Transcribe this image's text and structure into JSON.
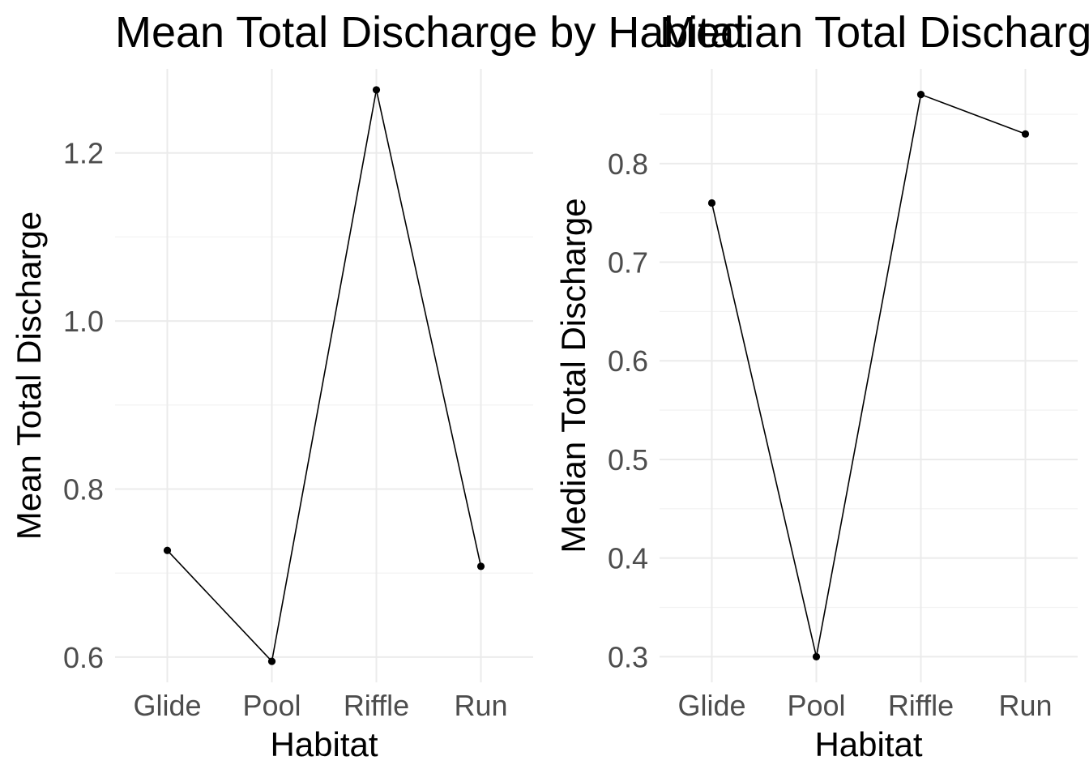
{
  "chart_data": [
    {
      "type": "line",
      "title": "Mean Total Discharge by Habitat",
      "xlabel": "Habitat",
      "ylabel": "Mean Total Discharge",
      "categories": [
        "Glide",
        "Pool",
        "Riffle",
        "Run"
      ],
      "series": [
        {
          "values": [
            0.727,
            0.595,
            1.275,
            0.708
          ]
        }
      ],
      "ylim": [
        0.57,
        1.3
      ],
      "yticks": [
        0.6,
        0.8,
        1.0,
        1.2
      ],
      "ytick_labels": [
        "0.6",
        "0.8",
        "1.0",
        "1.2"
      ],
      "yminor": [
        0.7,
        0.9,
        1.1
      ],
      "grid": true,
      "legend": "none"
    },
    {
      "type": "line",
      "title": "Median Total Discharge by Habitat",
      "xlabel": "Habitat",
      "ylabel": "Median Total Discharge",
      "categories": [
        "Glide",
        "Pool",
        "Riffle",
        "Run"
      ],
      "series": [
        {
          "values": [
            0.76,
            0.3,
            0.87,
            0.83
          ]
        }
      ],
      "ylim": [
        0.274,
        0.896
      ],
      "yticks": [
        0.3,
        0.4,
        0.5,
        0.6,
        0.7,
        0.8
      ],
      "ytick_labels": [
        "0.3",
        "0.4",
        "0.5",
        "0.6",
        "0.7",
        "0.8"
      ],
      "yminor": [
        0.35,
        0.45,
        0.55,
        0.65,
        0.75,
        0.85
      ],
      "grid": true,
      "legend": "none"
    }
  ]
}
